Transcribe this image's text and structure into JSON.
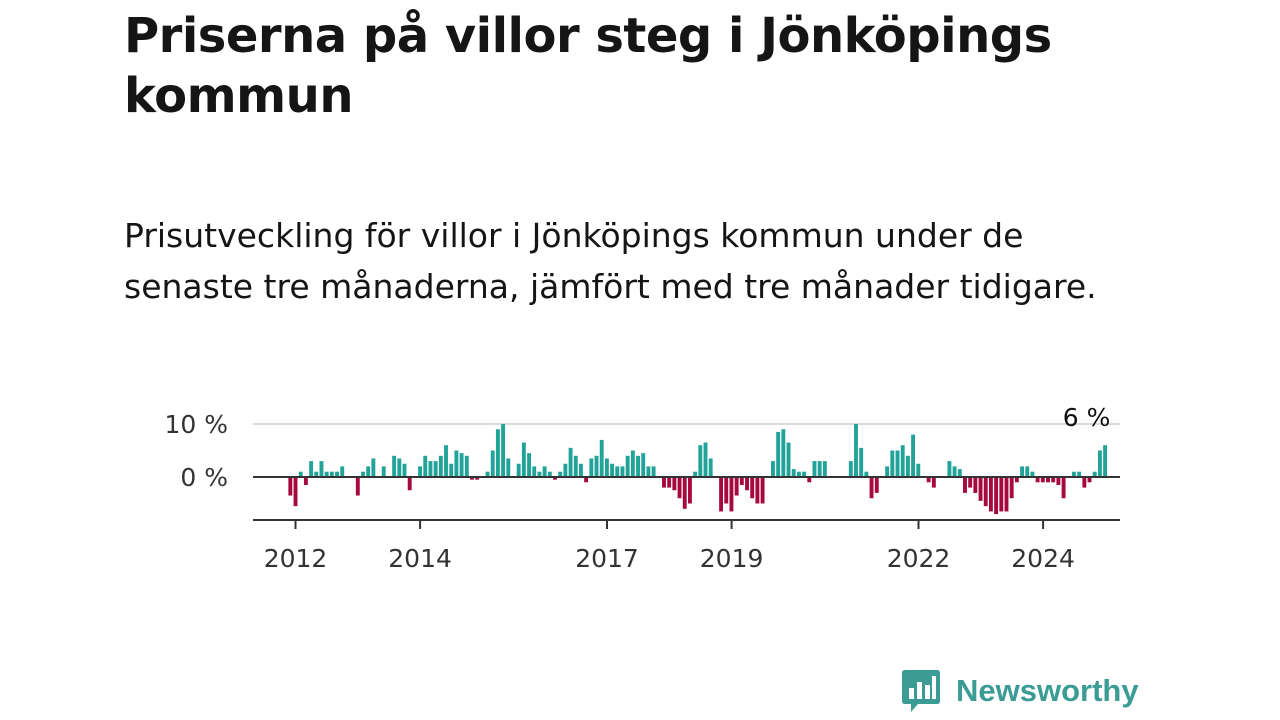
{
  "title": "Priserna på villor steg i Jönköpings kommun",
  "subtitle": "Prisutveckling för villor i Jönköpings kommun under de senaste tre månaderna, jämfört med tre månader tidigare.",
  "brand": {
    "name": "Newsworthy",
    "color": "#3a9c95",
    "icon": "bar-chart-speech-bubble-icon"
  },
  "chart_data": {
    "type": "bar",
    "title": "",
    "xlabel": "",
    "ylabel": "",
    "unit": "%",
    "ylim": [
      -8,
      11
    ],
    "y_ticks": [
      {
        "value": 10,
        "label": "10 %"
      },
      {
        "value": 0,
        "label": "0 %"
      }
    ],
    "x_start": 2011.917,
    "x_step": 0.0833,
    "x_ticks": [
      {
        "value": 2012,
        "label": "2012"
      },
      {
        "value": 2014,
        "label": "2014"
      },
      {
        "value": 2017,
        "label": "2017"
      },
      {
        "value": 2019,
        "label": "2019"
      },
      {
        "value": 2022,
        "label": "2022"
      },
      {
        "value": 2024,
        "label": "2024"
      }
    ],
    "positive_color": "#21a39a",
    "negative_color": "#a6093d",
    "annotation": {
      "label": "6 %",
      "index": 153
    },
    "values": [
      -3.5,
      -5.5,
      1,
      -1.5,
      3,
      1,
      3,
      1,
      1,
      1,
      2,
      0,
      0,
      -3.5,
      1,
      2,
      3.5,
      0,
      2,
      0,
      4,
      3.5,
      2.5,
      -2.5,
      0,
      2,
      4,
      3,
      3,
      4,
      6,
      2.5,
      5,
      4.5,
      4,
      -0.5,
      -0.5,
      0,
      1,
      5,
      9,
      10,
      3.5,
      0,
      2.5,
      6.5,
      4.5,
      2,
      1,
      2,
      1,
      -0.5,
      1,
      2.5,
      5.5,
      4,
      2.5,
      -1,
      3.5,
      4,
      7,
      3.5,
      2.5,
      2,
      2,
      4,
      5,
      4,
      4.5,
      2,
      2,
      0,
      -2,
      -2,
      -2.5,
      -4,
      -6,
      -5,
      1,
      6,
      6.5,
      3.5,
      0,
      -6.5,
      -5,
      -6.5,
      -3.5,
      -1.5,
      -2.5,
      -4,
      -5,
      -5,
      0,
      3,
      8.5,
      9,
      6.5,
      1.5,
      1,
      1,
      -1,
      3,
      3,
      3,
      0,
      0,
      0,
      0,
      3,
      10,
      5.5,
      1,
      -4,
      -3,
      0,
      2,
      5,
      5,
      6,
      4,
      8,
      2.5,
      0,
      -1,
      -2,
      0,
      0,
      3,
      2,
      1.5,
      -3,
      -2,
      -3,
      -4.5,
      -5.5,
      -6.5,
      -7,
      -6.5,
      -6.5,
      -4,
      -1,
      2,
      2,
      1,
      -1,
      -1,
      -1,
      -1,
      -1.5,
      -4,
      0,
      1,
      1,
      -2,
      -1,
      1,
      5,
      6
    ]
  }
}
